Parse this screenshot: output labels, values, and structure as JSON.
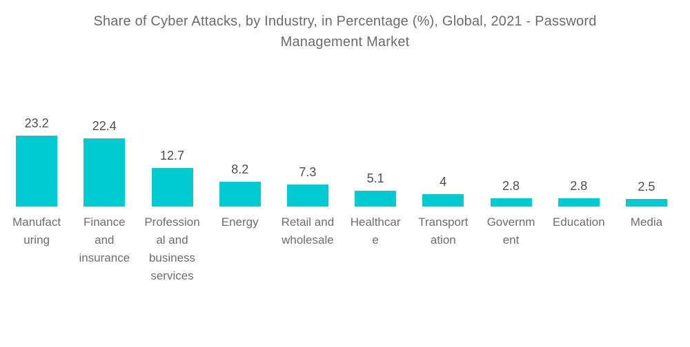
{
  "header": {
    "title": "Share of Cyber Attacks, by Industry, in Percentage (%), Global, 2021 - Password Management Market"
  },
  "colors": {
    "bar": "#00CBD1",
    "title_text": "#6b6b6b",
    "value_text": "#4e4e4e",
    "category_text": "#6d6d6d",
    "background": "#ffffff"
  },
  "chart_data": {
    "type": "bar",
    "title": "Share of Cyber Attacks, by Industry, in Percentage (%), Global, 2021 - Password Management Market",
    "categories": [
      "Manufacturing",
      "Finance and insurance",
      "Professional and business services",
      "Energy",
      "Retail and wholesale",
      "Healthcare",
      "Transportation",
      "Government",
      "Education",
      "Media"
    ],
    "values": [
      23.2,
      22.4,
      12.7,
      8.2,
      7.3,
      5.1,
      4,
      2.8,
      2.8,
      2.5
    ],
    "value_labels": [
      "23.2",
      "22.4",
      "12.7",
      "8.2",
      "7.3",
      "5.1",
      "4",
      "2.8",
      "2.8",
      "2.5"
    ],
    "category_label_lines": [
      [
        "Manufact",
        "uring"
      ],
      [
        "Finance",
        "and",
        "insurance"
      ],
      [
        "Profession",
        "al and",
        "business",
        "services"
      ],
      [
        "Energy"
      ],
      [
        "Retail and",
        "wholesale"
      ],
      [
        "Healthcar",
        "e"
      ],
      [
        "Transport",
        "ation"
      ],
      [
        "Governm",
        "ent"
      ],
      [
        "Education"
      ],
      [
        "Media"
      ]
    ],
    "xlabel": "",
    "ylabel": "",
    "ylim": [
      0,
      25
    ],
    "grid": false,
    "axes_visible": false,
    "legend": "none",
    "value_labels_position": "above-bars",
    "bar_color": "#00CBD1"
  }
}
